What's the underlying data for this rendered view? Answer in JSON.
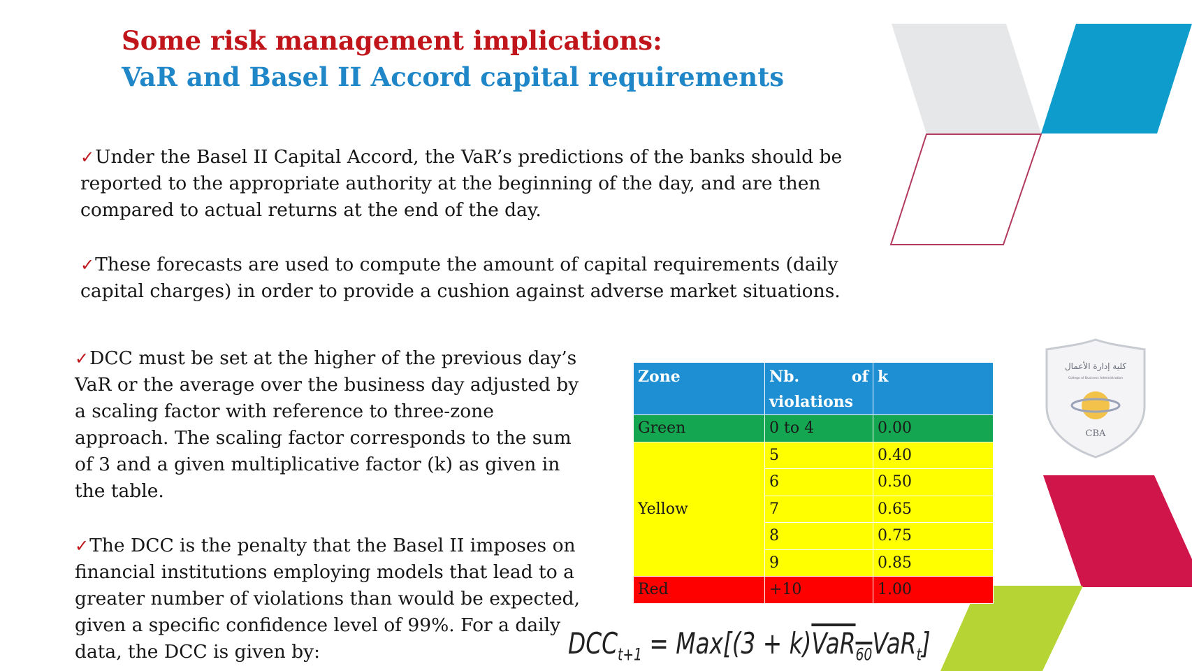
{
  "title": {
    "line1": "Some risk management implications:",
    "line2": "VaR and Basel II Accord capital requirements"
  },
  "check_glyph": "✓",
  "paragraphs": {
    "p1": "Under the Basel II Capital Accord, the VaR’s predictions of the banks should be reported to the appropriate authority at the beginning of the day, and are then compared to actual returns at the end of the day.",
    "p2": "These forecasts are used to compute the amount of capital requirements (daily capital charges) in order to provide a cushion against adverse market situations.",
    "p3": "DCC must be set at the higher of the previous day’s VaR or the average over the business day adjusted by a scaling factor with reference to three-zone approach.  The scaling factor corresponds to the sum of 3 and a given multiplicative factor (k) as given in the table.",
    "p4": "The DCC is the penalty that the Basel II imposes on financial institutions employing models that lead to a greater number of violations than would be expected, given a specific confidence level of 99%. For a daily data, the DCC is given by:"
  },
  "table": {
    "headers": {
      "zone": "Zone",
      "nb_a": "Nb.",
      "nb_b": "of",
      "nb_c": "violations",
      "k": "k"
    },
    "green": {
      "zone": "Green",
      "violations": "0 to 4",
      "k": "0.00"
    },
    "yellow": {
      "zone": "Yellow",
      "rows": [
        {
          "violations": "5",
          "k": "0.40"
        },
        {
          "violations": "6",
          "k": "0.50"
        },
        {
          "violations": "7",
          "k": "0.65"
        },
        {
          "violations": "8",
          "k": "0.75"
        },
        {
          "violations": "9",
          "k": "0.85"
        }
      ]
    },
    "red": {
      "zone": "Red",
      "violations": "+10",
      "k": "1.00"
    }
  },
  "formula": {
    "lhs": "DCC",
    "lhs_sub": "t+1",
    "eq": " = Max[(3 + k)",
    "var60": "VaR",
    "var60_sub": "60",
    "vart": "VaR",
    "vart_sub": "t",
    "close": "]"
  },
  "logo": {
    "label": "CBA",
    "arabic": "كلية إدارة الأعمال",
    "english": "College of Business Administration"
  },
  "colors": {
    "title_red": "#c0161b",
    "title_blue": "#1f86c7",
    "zone_header": "#1d8fd2",
    "zone_green": "#14a650",
    "zone_yellow": "#ffff00",
    "zone_red": "#ff0000",
    "deco_grey": "#e6e7e8",
    "deco_blue": "#0e9ccc",
    "deco_crimson": "#d0154a",
    "deco_lime": "#b6d534"
  }
}
